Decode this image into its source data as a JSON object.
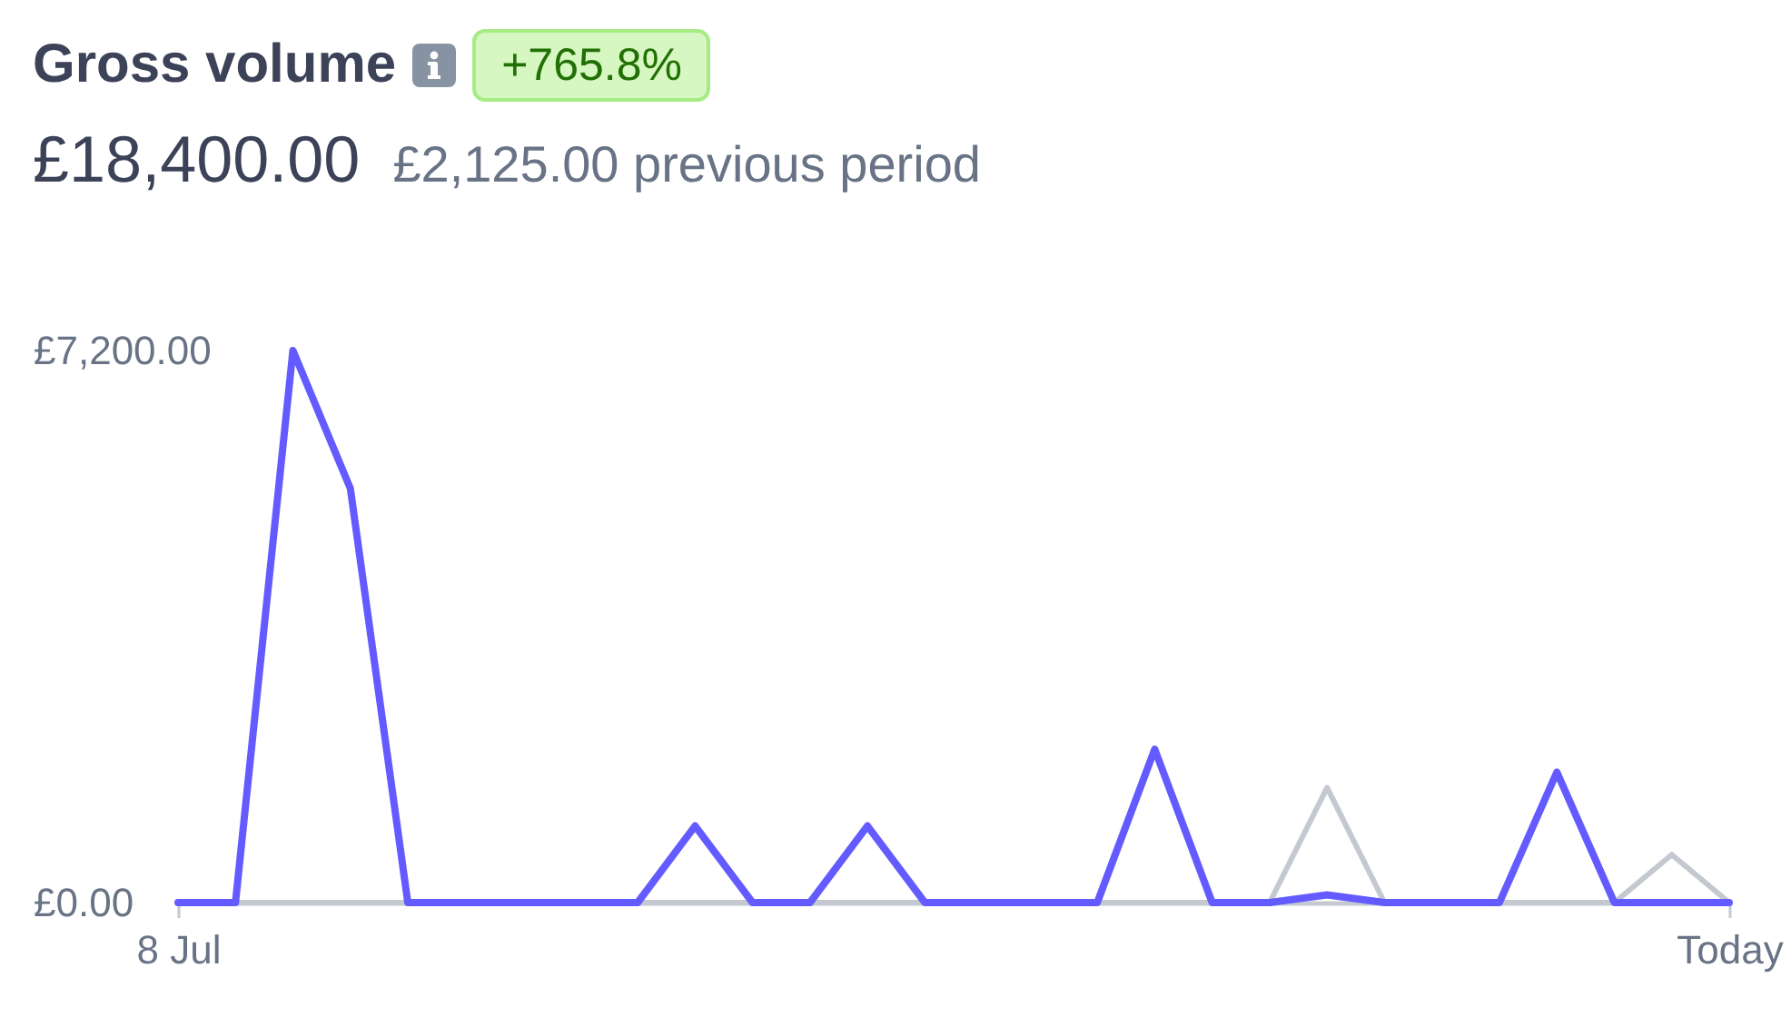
{
  "chart_data": {
    "type": "line",
    "title": "Gross volume",
    "subtitle": "£18,400.00",
    "annotations": [
      "+765.8%",
      "£2,125.00 previous period"
    ],
    "categories": [
      "8 Jul",
      null,
      null,
      null,
      null,
      null,
      null,
      null,
      null,
      null,
      null,
      null,
      null,
      null,
      null,
      null,
      null,
      null,
      null,
      null,
      null,
      null,
      null,
      null,
      null,
      null,
      null,
      "Today"
    ],
    "series": [
      {
        "color": "#635bff",
        "values": [
          0,
          0,
          7200,
          5400,
          0,
          0,
          0,
          0,
          0,
          1000,
          0,
          0,
          1000,
          0,
          0,
          0,
          0,
          2000,
          0,
          0,
          100,
          0,
          0,
          0,
          1700,
          0,
          0,
          0
        ]
      },
      {
        "color": "#c4c9d1",
        "values": [
          0,
          0,
          0,
          0,
          0,
          0,
          0,
          0,
          0,
          0,
          0,
          0,
          0,
          0,
          0,
          0,
          0,
          0,
          0,
          0,
          1500,
          0,
          0,
          0,
          0,
          0,
          625,
          0
        ]
      }
    ],
    "ylim": [
      0,
      7200
    ],
    "yticks": [
      {
        "value": 0,
        "label": "£0.00"
      },
      {
        "value": 7200,
        "label": "£7,200.00"
      }
    ]
  }
}
